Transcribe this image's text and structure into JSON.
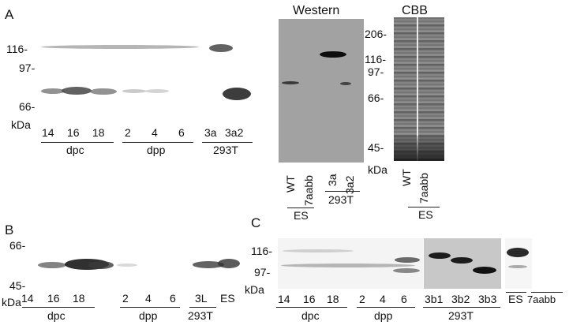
{
  "panel_a": {
    "letter": "A",
    "markers": [
      "116-",
      "97-",
      "66-"
    ],
    "unit": "kDa",
    "lanes": [
      "14",
      "16",
      "18",
      "2",
      "4",
      "6",
      "3a",
      "3a2"
    ],
    "groups": [
      "dpc",
      "dpp",
      "293T"
    ]
  },
  "western": {
    "title": "Western",
    "markers": [
      "206-",
      "116-",
      "97-",
      "66-",
      "45-"
    ],
    "unit": "kDa",
    "lanes": [
      "WT",
      "7aabb",
      "3a",
      "3a2"
    ],
    "groups": [
      "ES",
      "293T"
    ]
  },
  "cbb": {
    "title": "CBB",
    "lanes": [
      "WT",
      "7aabb"
    ],
    "group": "ES"
  },
  "panel_b": {
    "letter": "B",
    "markers": [
      "66-",
      "45-"
    ],
    "unit": "kDa",
    "lanes": [
      "14",
      "16",
      "18",
      "2",
      "4",
      "6",
      "3L",
      "ES"
    ],
    "groups": [
      "dpc",
      "dpp",
      "293T"
    ]
  },
  "panel_c": {
    "letter": "C",
    "markers": [
      "116-",
      "97-"
    ],
    "unit": "kDa",
    "lanes": [
      "14",
      "16",
      "18",
      "2",
      "4",
      "6",
      "3b1",
      "3b2",
      "3b3",
      "ES",
      "7aabb"
    ],
    "groups": [
      "dpc",
      "dpp",
      "293T"
    ]
  }
}
